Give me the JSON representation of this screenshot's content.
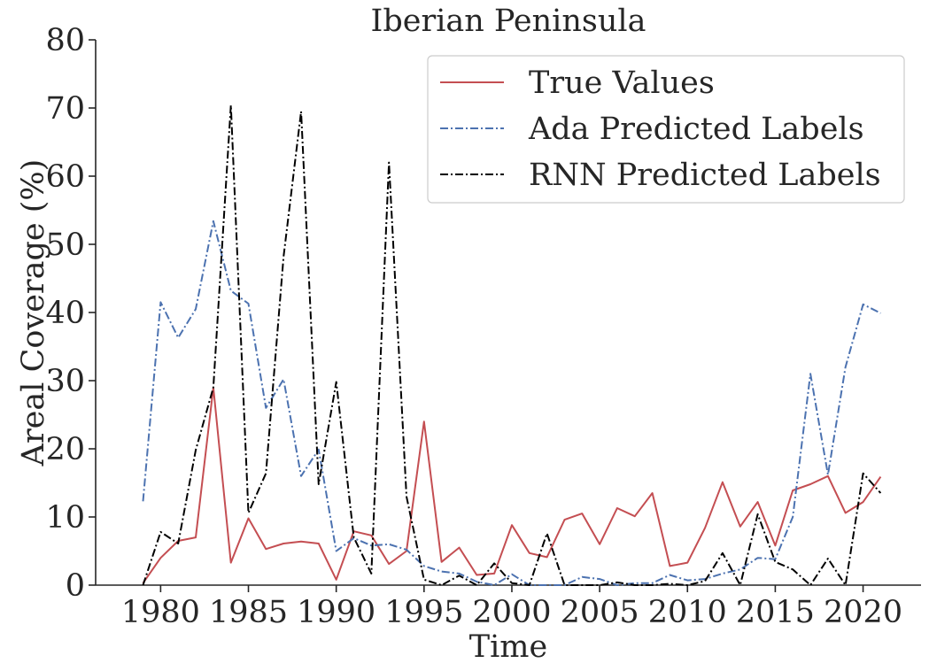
{
  "chart_data": {
    "type": "line",
    "title": "Iberian Peninsula",
    "xlabel": "Time",
    "ylabel": "Areal Coverage (%)",
    "xlim": [
      1976.3,
      2023.3
    ],
    "ylim": [
      0,
      80
    ],
    "xticks": [
      1980,
      1985,
      1990,
      1995,
      2000,
      2005,
      2010,
      2015,
      2020
    ],
    "yticks": [
      0,
      10,
      20,
      30,
      40,
      50,
      60,
      70,
      80
    ],
    "grid": false,
    "legend_position": "top-right",
    "x": [
      1979,
      1980,
      1981,
      1982,
      1983,
      1984,
      1985,
      1986,
      1987,
      1988,
      1989,
      1990,
      1991,
      1992,
      1993,
      1994,
      1995,
      1996,
      1997,
      1998,
      1999,
      2000,
      2001,
      2002,
      2003,
      2004,
      2005,
      2006,
      2007,
      2008,
      2009,
      2010,
      2011,
      2012,
      2013,
      2014,
      2015,
      2016,
      2017,
      2018,
      2019,
      2020,
      2021
    ],
    "series": [
      {
        "name": "True Values",
        "color": "#c44e52",
        "style": "solid",
        "values": [
          0.3,
          4.0,
          6.5,
          7.0,
          29.0,
          3.3,
          9.8,
          5.3,
          6.1,
          6.4,
          6.1,
          0.8,
          7.9,
          7.3,
          3.1,
          5.0,
          24.0,
          3.4,
          5.5,
          1.5,
          1.7,
          8.8,
          4.7,
          4.1,
          9.6,
          10.5,
          6.0,
          11.3,
          10.1,
          13.5,
          2.8,
          3.3,
          8.4,
          15.1,
          8.6,
          12.2,
          5.8,
          13.9,
          14.8,
          16.0,
          10.6,
          12.2,
          15.9
        ]
      },
      {
        "name": "Ada Predicted Labels",
        "color": "#4c72b0",
        "style": "dashdot",
        "values": [
          12.3,
          41.5,
          36.3,
          40.5,
          53.4,
          43.2,
          41.3,
          26.0,
          30.2,
          16.0,
          19.9,
          5.0,
          6.9,
          5.8,
          6.0,
          5.2,
          2.8,
          2.0,
          1.7,
          0.5,
          0.0,
          1.6,
          0.0,
          0.0,
          0.0,
          1.2,
          0.9,
          0.0,
          0.3,
          0.3,
          1.5,
          0.7,
          0.9,
          1.7,
          2.3,
          4.0,
          3.8,
          10.0,
          31.0,
          16.2,
          32.0,
          41.2,
          39.9
        ]
      },
      {
        "name": "RNN Predicted Labels",
        "color": "#000000",
        "style": "dashdot",
        "values": [
          0.0,
          7.8,
          6.1,
          19.8,
          29.0,
          70.4,
          10.6,
          16.4,
          48.2,
          69.5,
          14.8,
          29.8,
          7.0,
          1.7,
          62.0,
          13.0,
          0.8,
          0.0,
          1.4,
          0.0,
          3.2,
          0.3,
          0.0,
          7.6,
          0.0,
          0.0,
          0.0,
          0.4,
          0.0,
          0.0,
          0.2,
          0.0,
          0.6,
          4.7,
          0.0,
          10.4,
          3.4,
          2.3,
          0.0,
          3.9,
          0.0,
          16.4,
          13.5
        ]
      }
    ]
  }
}
